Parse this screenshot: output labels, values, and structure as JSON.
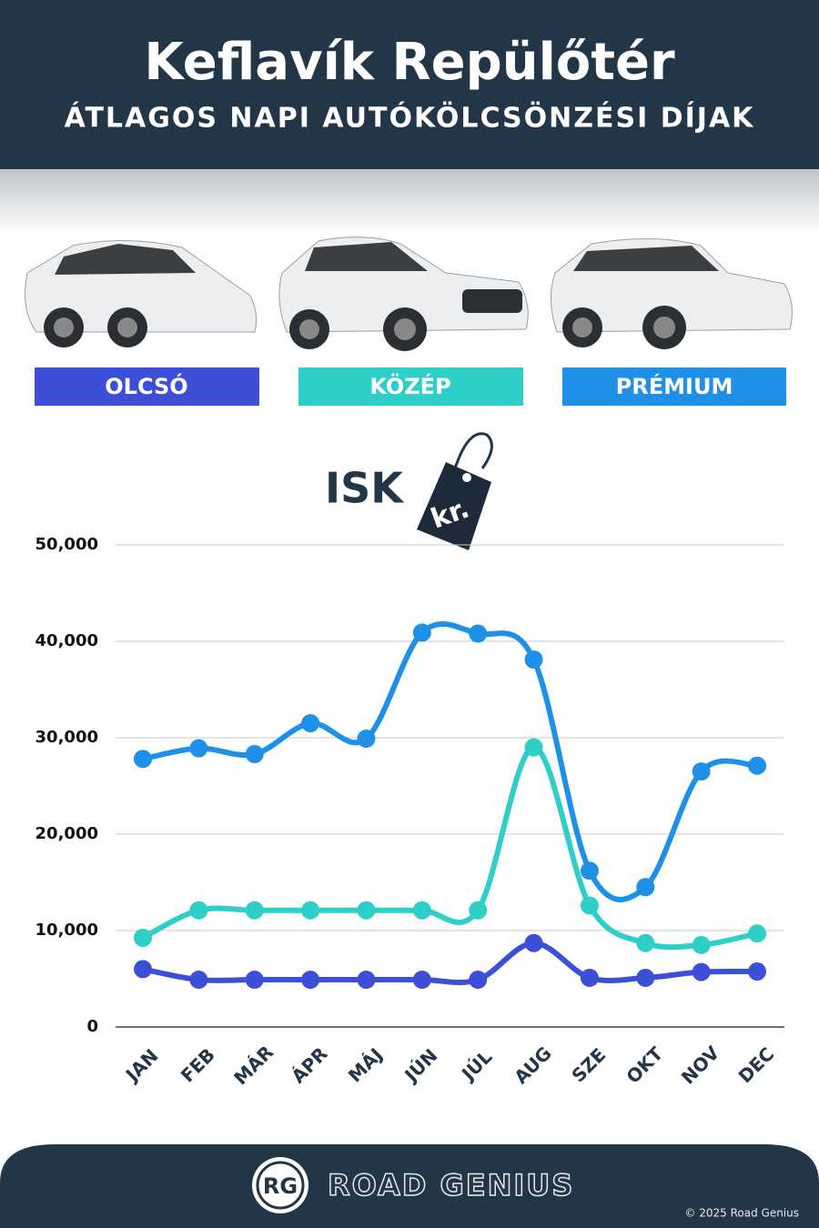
{
  "header": {
    "title": "Keflavík Repülőtér",
    "subtitle": "ÁTLAGOS NAPI AUTÓKÖLCSÖNZÉSI DÍJAK"
  },
  "chart_data": {
    "type": "line",
    "currency": "ISK",
    "currency_tag": "kr.",
    "categories": [
      "JAN",
      "FEB",
      "MÁR",
      "ÁPR",
      "MÁJ",
      "JÚN",
      "JÚL",
      "AUG",
      "SZE",
      "OKT",
      "NOV",
      "DEC"
    ],
    "series": [
      {
        "name": "OLCSÓ",
        "color": "#3d4fd6",
        "values": [
          6000,
          4900,
          4900,
          4900,
          4900,
          4900,
          4900,
          8700,
          5100,
          5100,
          5700,
          5750
        ]
      },
      {
        "name": "KÖZÉP",
        "color": "#2ecfc8",
        "values": [
          9250,
          12100,
          12100,
          12100,
          12100,
          12100,
          12100,
          29000,
          12600,
          8700,
          8500,
          9700
        ]
      },
      {
        "name": "PRÉMIUM",
        "color": "#1e90e8",
        "values": [
          27800,
          28900,
          28300,
          31500,
          29900,
          40900,
          40800,
          38100,
          16200,
          14500,
          26500,
          27100
        ]
      }
    ],
    "ylim": [
      0,
      50000
    ],
    "yticks": [
      0,
      {
        "value": 10000,
        "label": "10,000"
      },
      {
        "value": 20000,
        "label": "20,000"
      },
      {
        "value": 30000,
        "label": "30,000"
      },
      {
        "value": 40000,
        "label": "40,000"
      },
      {
        "value": 50000,
        "label": "50,000"
      }
    ],
    "grid": true
  },
  "footer": {
    "logo": "RG",
    "brand": "ROAD GENIUS",
    "copyright": "© 2025 Road Genius"
  }
}
